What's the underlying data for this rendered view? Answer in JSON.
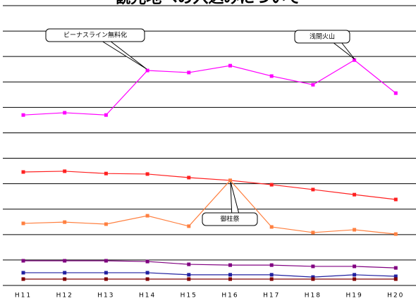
{
  "chart_data": {
    "type": "line",
    "title": "観光地への入込みについて",
    "categories": [
      "H11",
      "H12",
      "H13",
      "H14",
      "H15",
      "H16",
      "H17",
      "H18",
      "H19",
      "H20"
    ],
    "series": [
      {
        "color": "#ff00ff",
        "values": [
          6.7,
          6.79,
          6.7,
          8.45,
          8.37,
          8.64,
          8.23,
          7.89,
          8.86,
          7.56
        ]
      },
      {
        "color": "#ff2020",
        "values": [
          4.46,
          4.49,
          4.4,
          4.38,
          4.24,
          4.13,
          3.96,
          3.77,
          3.57,
          3.38
        ]
      },
      {
        "color": "#ff8040",
        "values": [
          2.44,
          2.49,
          2.41,
          2.74,
          2.33,
          4.13,
          2.3,
          2.08,
          2.19,
          2.02
        ]
      },
      {
        "color": "#800080",
        "values": [
          0.97,
          0.97,
          0.97,
          0.94,
          0.83,
          0.8,
          0.8,
          0.75,
          0.75,
          0.69
        ]
      },
      {
        "color": "#2020a0",
        "values": [
          0.5,
          0.5,
          0.5,
          0.5,
          0.42,
          0.42,
          0.42,
          0.33,
          0.42,
          0.36
        ]
      },
      {
        "color": "#800000",
        "values": [
          0.25,
          0.25,
          0.25,
          0.25,
          0.25,
          0.25,
          0.25,
          0.25,
          0.25,
          0.25
        ]
      }
    ],
    "annotations": [
      "ビーナスライン無料化",
      "浅間火山",
      "御柱祭"
    ],
    "ylim": [
      0,
      11
    ],
    "yticks": [
      0,
      1,
      2,
      3,
      4,
      5,
      6,
      7,
      8,
      9,
      10,
      11
    ],
    "grid": true
  }
}
